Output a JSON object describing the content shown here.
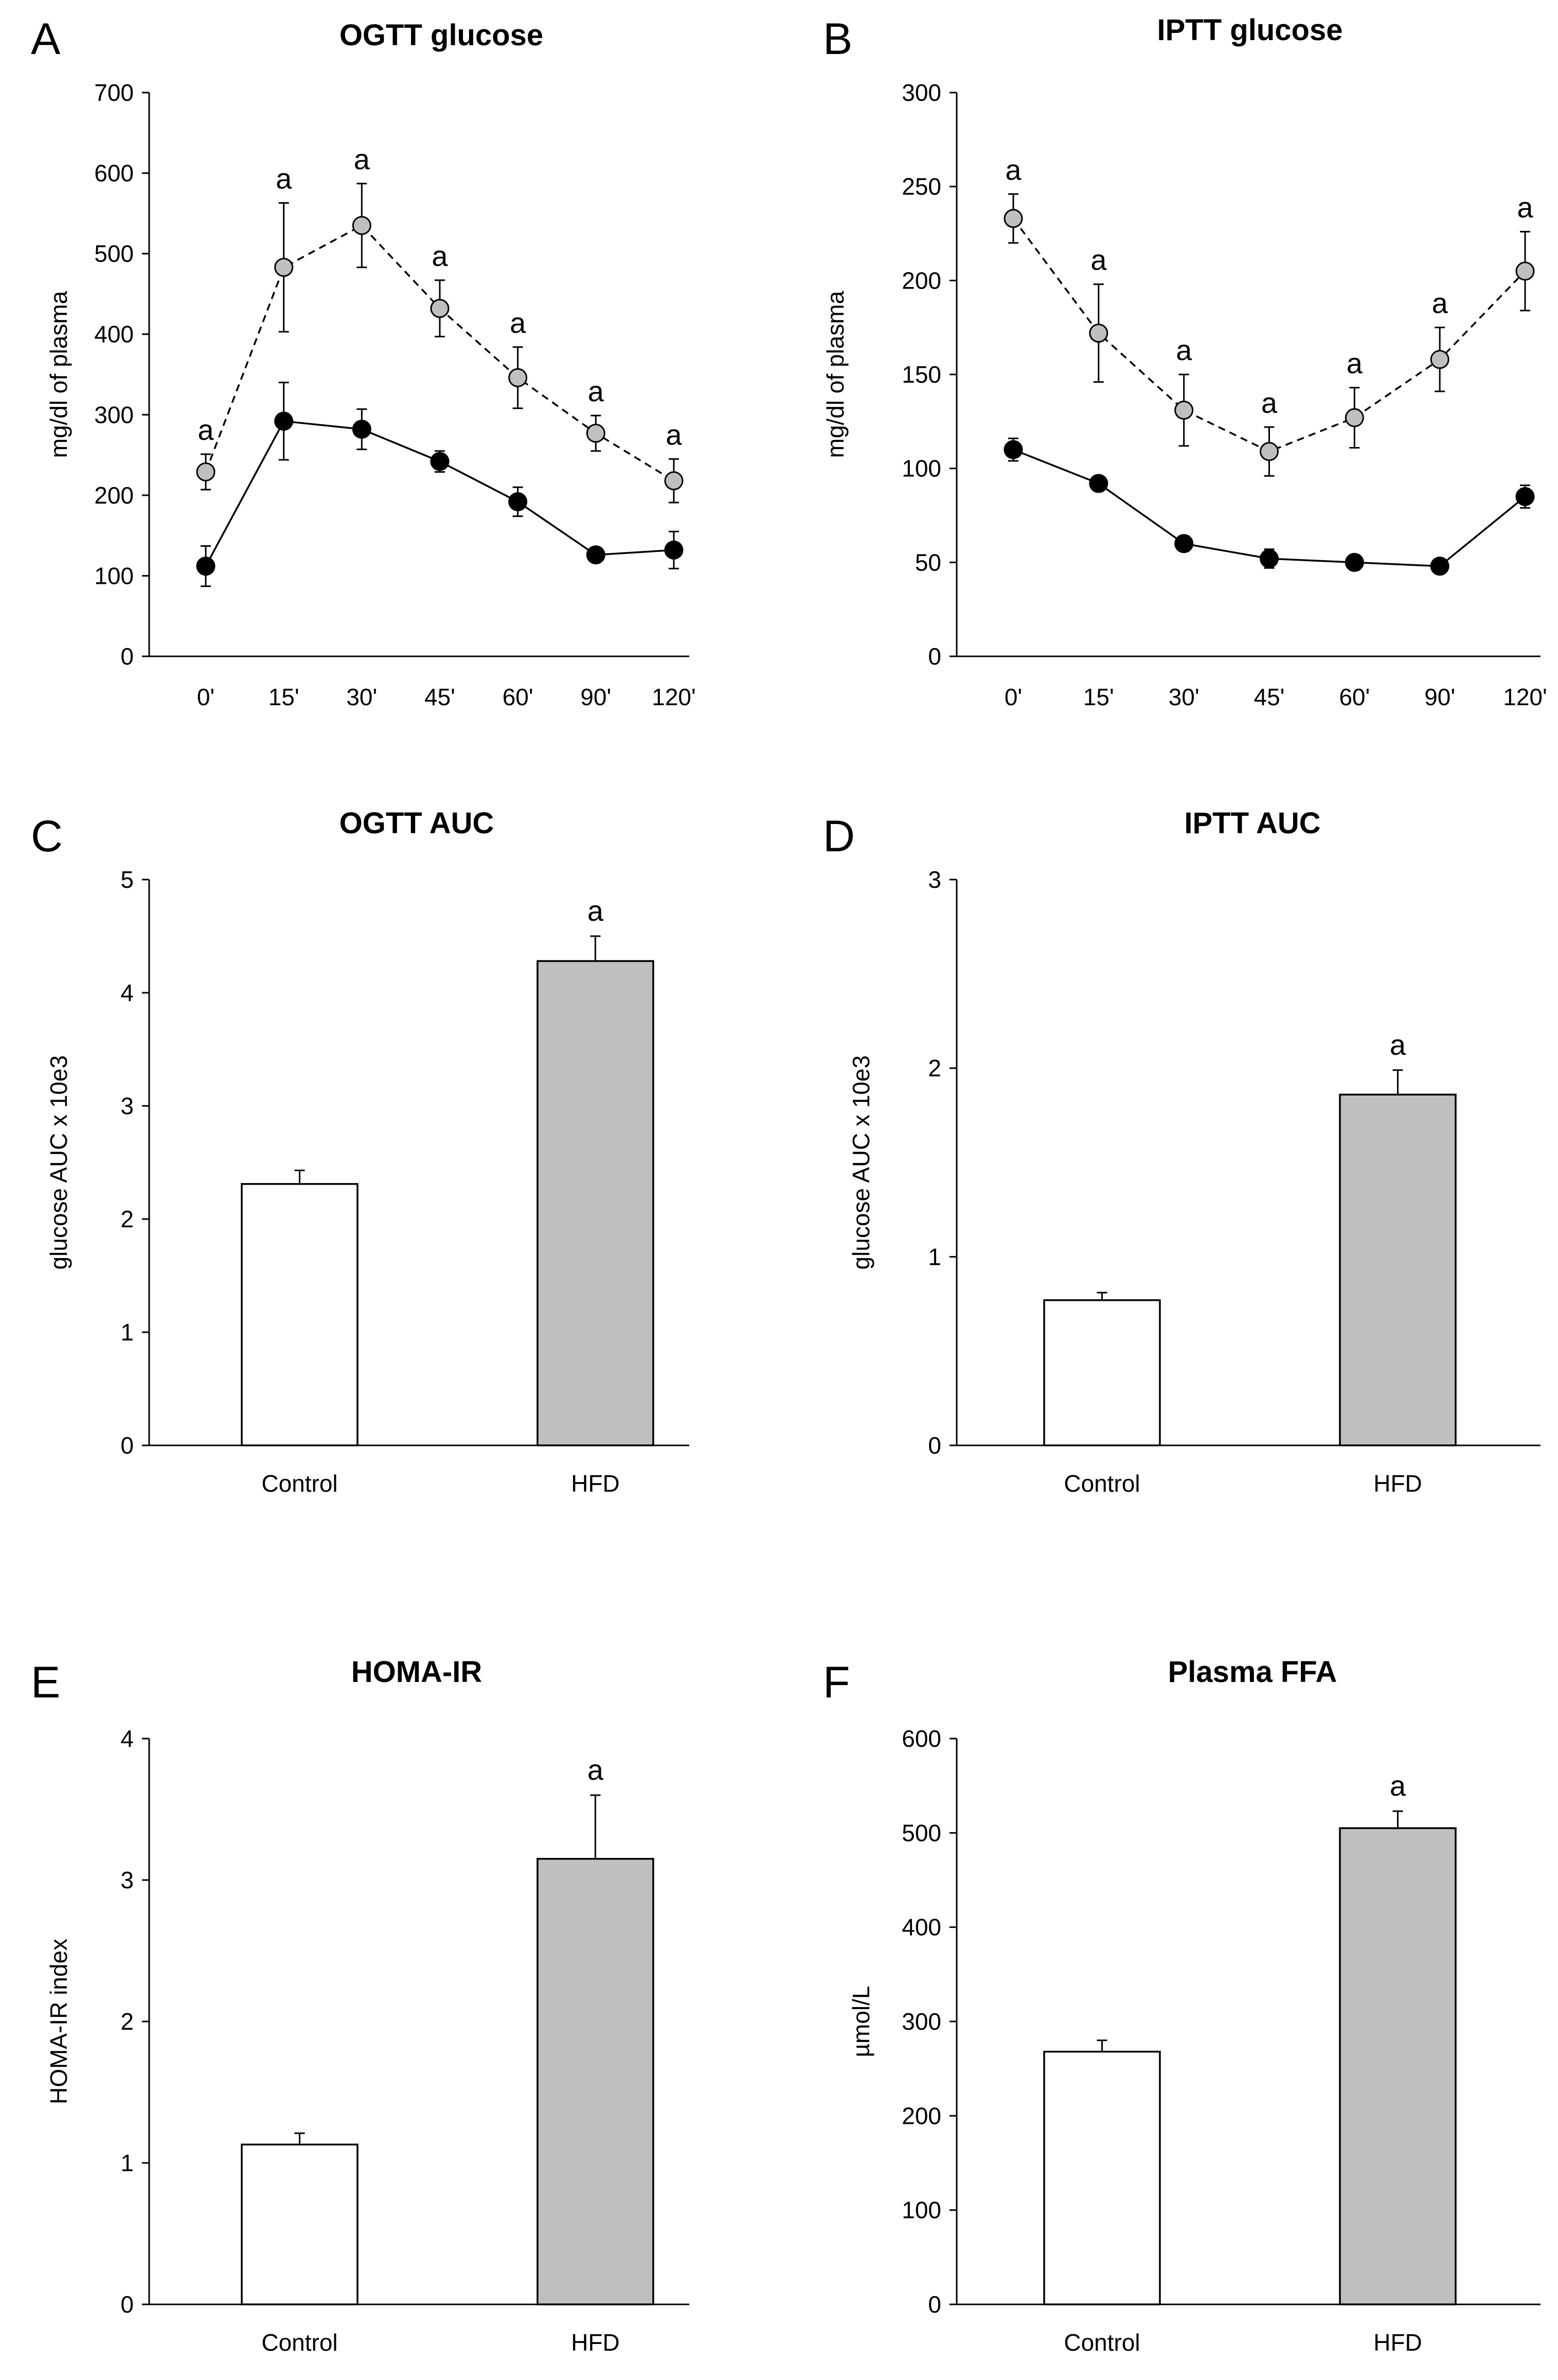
{
  "figure": {
    "panels": [
      "A",
      "B",
      "C",
      "D",
      "E",
      "F"
    ],
    "significance_mark": "a"
  },
  "colors": {
    "control": "#000000",
    "hfd_marker": "#bfbfbf",
    "control_bar": "#ffffff",
    "hfd_bar": "#bfbfbf",
    "axis": "#000000"
  },
  "chart_data": [
    {
      "panel": "A",
      "type": "line",
      "title": "OGTT glucose",
      "ylabel": "mg/dl of plasma",
      "xlabel": "",
      "ylim": [
        0,
        700
      ],
      "yticks": [
        0,
        100,
        200,
        300,
        400,
        500,
        600,
        700
      ],
      "categories": [
        "0'",
        "15'",
        "30'",
        "45'",
        "60'",
        "90'",
        "120'"
      ],
      "series": [
        {
          "name": "Control",
          "style": "solid",
          "marker": "black",
          "values": [
            112,
            292,
            282,
            242,
            192,
            126,
            132
          ],
          "errors": [
            25,
            48,
            25,
            13,
            18,
            5,
            23
          ]
        },
        {
          "name": "HFD",
          "style": "dashed",
          "marker": "grey",
          "values": [
            229,
            483,
            535,
            432,
            346,
            277,
            218
          ],
          "errors": [
            22,
            80,
            52,
            35,
            38,
            22,
            27
          ],
          "significance": [
            "a",
            "a",
            "a",
            "a",
            "a",
            "a",
            "a"
          ]
        }
      ]
    },
    {
      "panel": "B",
      "type": "line",
      "title": "IPTT glucose",
      "ylabel": "mg/dl of plasma",
      "xlabel": "",
      "ylim": [
        0,
        300
      ],
      "yticks": [
        0,
        50,
        100,
        150,
        200,
        250,
        300
      ],
      "categories": [
        "0'",
        "15'",
        "30'",
        "45'",
        "60'",
        "90'",
        "120'"
      ],
      "series": [
        {
          "name": "Control",
          "style": "solid",
          "marker": "black",
          "values": [
            110,
            92,
            60,
            52,
            50,
            48,
            85
          ],
          "errors": [
            6,
            3,
            4,
            5,
            4,
            2,
            6
          ]
        },
        {
          "name": "HFD",
          "style": "dashed",
          "marker": "grey",
          "values": [
            233,
            172,
            131,
            109,
            127,
            158,
            205
          ],
          "errors": [
            13,
            26,
            19,
            13,
            16,
            17,
            21
          ],
          "significance": [
            "a",
            "a",
            "a",
            "a",
            "a",
            "a",
            "a"
          ]
        }
      ]
    },
    {
      "panel": "C",
      "type": "bar",
      "title": "OGTT AUC",
      "ylabel": "glucose AUC x 10e3",
      "xlabel": "",
      "ylim": [
        0,
        5
      ],
      "yticks": [
        0,
        1,
        2,
        3,
        4,
        5
      ],
      "categories": [
        "Control",
        "HFD"
      ],
      "values": [
        2.31,
        4.28
      ],
      "errors": [
        0.12,
        0.22
      ],
      "significance": [
        "",
        "a"
      ]
    },
    {
      "panel": "D",
      "type": "bar",
      "title": "IPTT AUC",
      "ylabel": "glucose AUC x 10e3",
      "xlabel": "",
      "ylim": [
        0,
        3
      ],
      "yticks": [
        0,
        1,
        2,
        3
      ],
      "categories": [
        "Control",
        "HFD"
      ],
      "values": [
        0.77,
        1.86
      ],
      "errors": [
        0.04,
        0.13
      ],
      "significance": [
        "",
        "a"
      ]
    },
    {
      "panel": "E",
      "type": "bar",
      "title": "HOMA-IR",
      "ylabel": "HOMA-IR index",
      "xlabel": "",
      "ylim": [
        0,
        4
      ],
      "yticks": [
        0,
        1,
        2,
        3,
        4
      ],
      "categories": [
        "Control",
        "HFD"
      ],
      "values": [
        1.13,
        3.15
      ],
      "errors": [
        0.08,
        0.45
      ],
      "significance": [
        "",
        "a"
      ]
    },
    {
      "panel": "F",
      "type": "bar",
      "title": "Plasma FFA",
      "ylabel": "µmol/L",
      "xlabel": "",
      "ylim": [
        0,
        600
      ],
      "yticks": [
        0,
        100,
        200,
        300,
        400,
        500,
        600
      ],
      "categories": [
        "Control",
        "HFD"
      ],
      "values": [
        268,
        505
      ],
      "errors": [
        12,
        18
      ],
      "significance": [
        "",
        "a"
      ]
    }
  ]
}
